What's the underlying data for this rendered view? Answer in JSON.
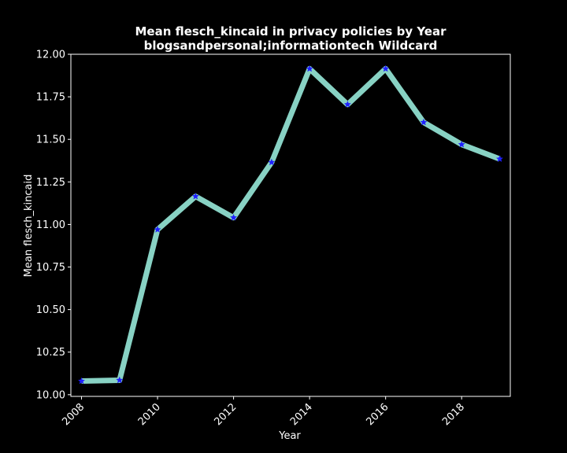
{
  "chart_data": {
    "type": "line",
    "title_line1": "Mean flesch_kincaid in privacy policies by Year",
    "title_line2": "blogsandpersonal;informationtech Wildcard",
    "xlabel": "Year",
    "ylabel": "Mean flesch_kincaid",
    "x": [
      2008,
      2009,
      2010,
      2011,
      2012,
      2013,
      2014,
      2015,
      2016,
      2017,
      2018,
      2019
    ],
    "y": [
      10.08,
      10.085,
      10.97,
      11.165,
      11.04,
      11.365,
      11.915,
      11.705,
      11.915,
      11.6,
      11.47,
      11.385
    ],
    "x_ticks": [
      2008,
      2010,
      2012,
      2014,
      2016,
      2018
    ],
    "y_ticks": [
      "10.00",
      "10.25",
      "10.50",
      "10.75",
      "11.00",
      "11.25",
      "11.50",
      "11.75",
      "12.00"
    ],
    "xlim": [
      2007.72,
      2019.28
    ],
    "ylim": [
      9.99,
      12.0
    ],
    "grid": false,
    "line_color": "#88d2c4",
    "marker_color": "#1f1fff",
    "background_color": "#000000",
    "axes_color": "#ffffff",
    "marker": "star"
  }
}
